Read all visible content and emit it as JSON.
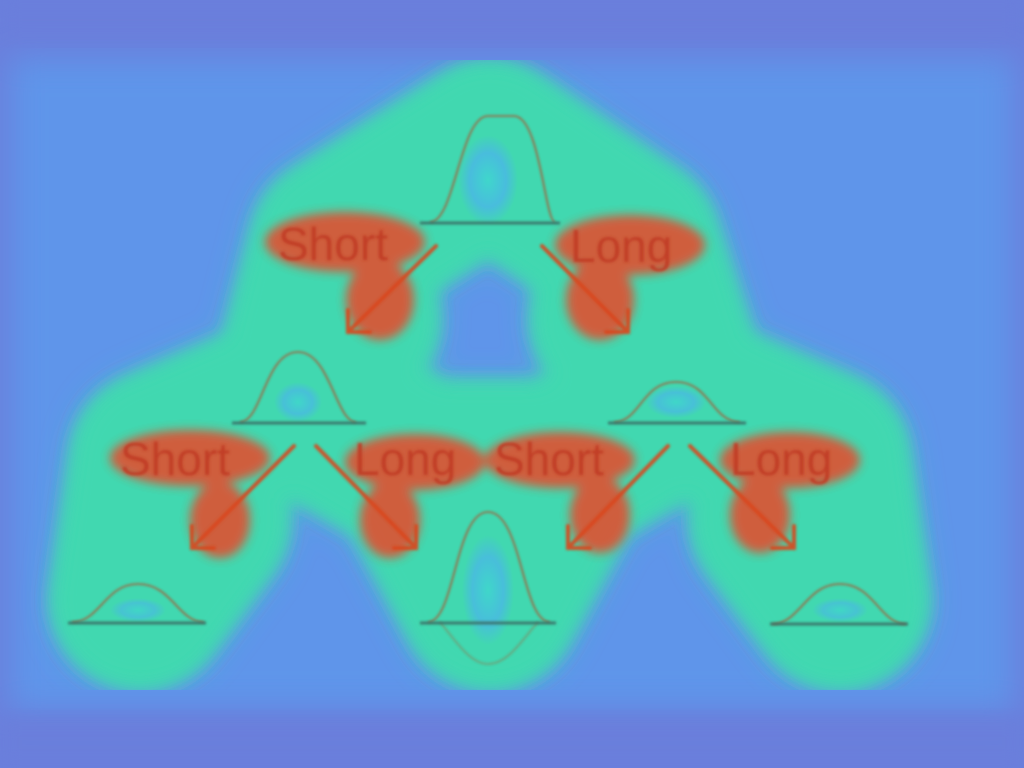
{
  "diagram": {
    "root": {
      "left_label": "Short",
      "right_label": "Long"
    },
    "left_node": {
      "left_label": "Short",
      "right_label": "Long"
    },
    "right_node": {
      "left_label": "Short",
      "right_label": "Long"
    }
  },
  "colors": {
    "background": "#6a7fdc",
    "field": "#5f95ea",
    "heat_hot": "#e84a2b",
    "heat_warm": "#f6b43c",
    "heat_glow": "#aef04a",
    "heat_edge": "#41d8b0",
    "curve_stroke": "#b44a28",
    "baseline": "#3b6a62",
    "arrow": "#d9461e"
  }
}
